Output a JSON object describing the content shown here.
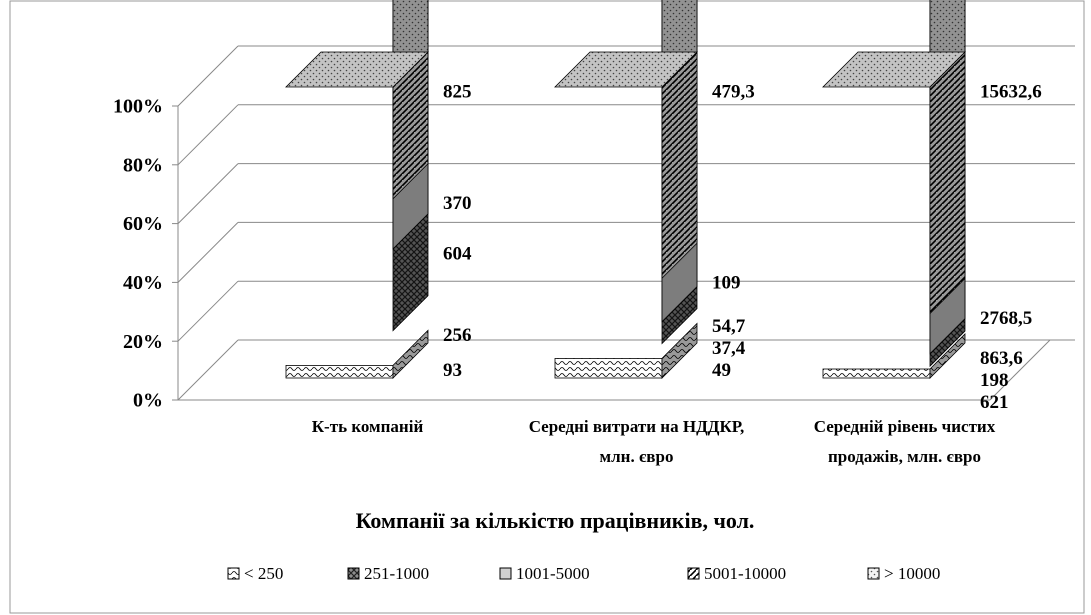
{
  "chart_data": {
    "type": "bar",
    "stacked": "percent",
    "three_d": true,
    "x_label": "Компанії за кількістю працівників, чол.",
    "categories": [
      "К-ть компаній",
      "Середні витрати на НДДКР, млн. євро",
      "Середній рівень чистих продажів, млн. євро"
    ],
    "series": [
      {
        "name": "< 250",
        "color": "#ffffff",
        "values": [
          93,
          49,
          621
        ],
        "value_labels": [
          "93",
          "49",
          "621"
        ]
      },
      {
        "name": "251-1000",
        "color": "#8c8c8c",
        "values": [
          256,
          37.4,
          198
        ],
        "value_labels": [
          "256",
          "37,4",
          "198"
        ]
      },
      {
        "name": "1001-5000",
        "color": "#d0d0d0",
        "values": [
          604,
          54.7,
          863.6
        ],
        "value_labels": [
          "604",
          "54,7",
          "863,6"
        ]
      },
      {
        "name": "5001-10000",
        "color": "#ffffff",
        "values": [
          370,
          109,
          2768.5
        ],
        "value_labels": [
          "370",
          "109",
          "2768,5"
        ]
      },
      {
        "name": "> 10000",
        "color": "#f4f4f4",
        "values": [
          825,
          479.3,
          15632.6
        ],
        "value_labels": [
          "825",
          "479,3",
          "15632,6"
        ]
      }
    ],
    "ylim": [
      0,
      100
    ],
    "yticks": [
      {
        "value": 0,
        "label": "0%"
      },
      {
        "value": 20,
        "label": "20%"
      },
      {
        "value": 40,
        "label": "40%"
      },
      {
        "value": 60,
        "label": "60%"
      },
      {
        "value": 80,
        "label": "80%"
      },
      {
        "value": 100,
        "label": "100%"
      }
    ],
    "grid": true,
    "legend": "bottom"
  }
}
